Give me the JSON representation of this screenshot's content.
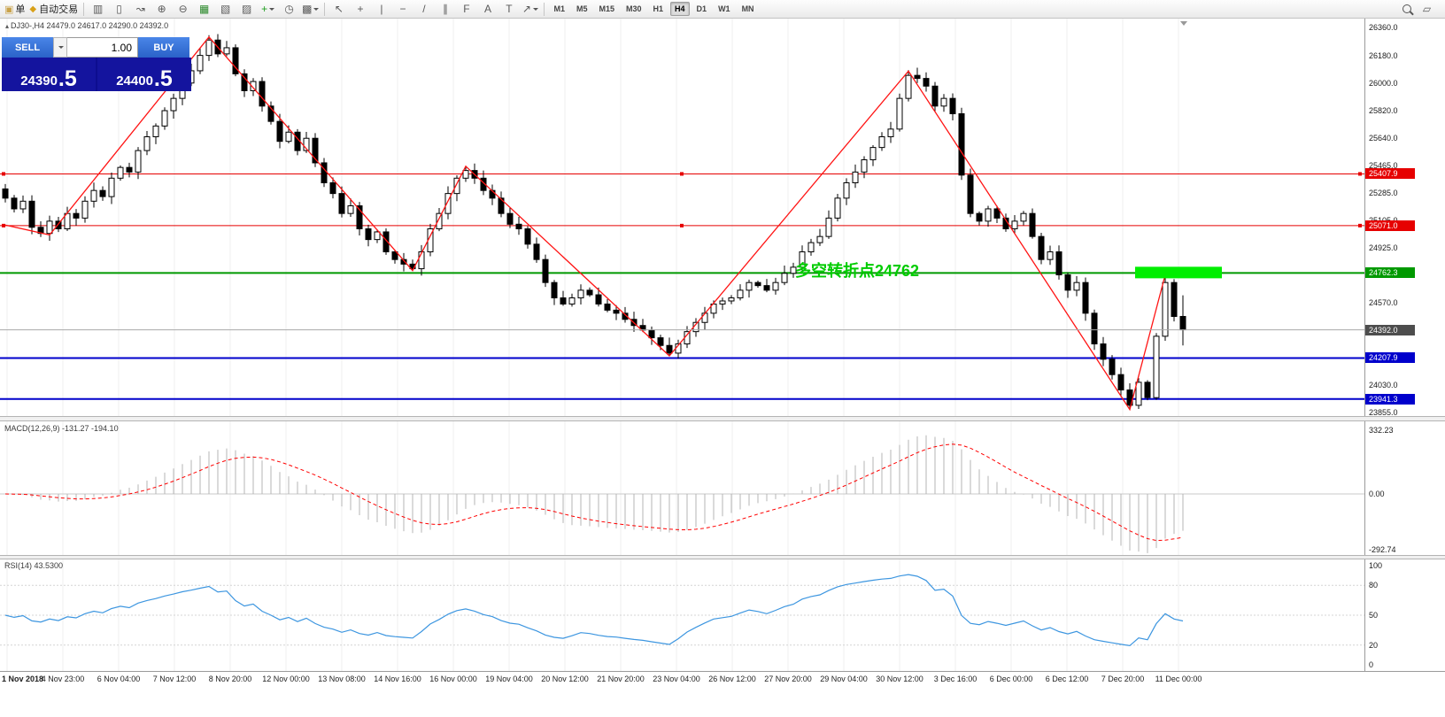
{
  "toolbar": {
    "order_label": "单",
    "order_icon_glyph": "▣",
    "autotrade_label": "自动交易",
    "autotrade_icon_glyph": "◆",
    "icons_left": [
      {
        "name": "bar-chart-icon",
        "glyph": "▥"
      },
      {
        "name": "candlestick-chart-icon",
        "glyph": "▯"
      },
      {
        "name": "line-chart-icon",
        "glyph": "↝"
      },
      {
        "name": "zoom-in-icon",
        "glyph": "⊕"
      },
      {
        "name": "zoom-out-icon",
        "glyph": "⊖"
      },
      {
        "name": "tile-windows-icon",
        "glyph": "▦",
        "color": "#2e8b2e"
      },
      {
        "name": "auto-arrange-icon",
        "glyph": "▧"
      },
      {
        "name": "chart-shift-icon",
        "glyph": "▨"
      },
      {
        "name": "new-chart-icon",
        "glyph": "+",
        "color": "#1f9e1f",
        "caret": true
      },
      {
        "name": "clock-icon",
        "glyph": "◷"
      },
      {
        "name": "grid-icon",
        "glyph": "▩",
        "caret": true
      }
    ],
    "icons_draw": [
      {
        "name": "cursor-icon",
        "glyph": "↖"
      },
      {
        "name": "crosshair-icon",
        "glyph": "+"
      },
      {
        "name": "vertical-line-icon",
        "glyph": "|"
      },
      {
        "name": "horizontal-line-icon",
        "glyph": "−"
      },
      {
        "name": "trendline-icon",
        "glyph": "/"
      },
      {
        "name": "channel-icon",
        "glyph": "∥"
      },
      {
        "name": "fibonacci-icon",
        "glyph": "F"
      },
      {
        "name": "text-icon",
        "glyph": "A"
      },
      {
        "name": "label-icon",
        "glyph": "T"
      },
      {
        "name": "arrows-icon",
        "glyph": "↗",
        "caret": true
      }
    ],
    "timeframes": [
      "M1",
      "M5",
      "M15",
      "M30",
      "H1",
      "H4",
      "D1",
      "W1",
      "MN"
    ],
    "active_timeframe": "H4",
    "icons_right": [
      {
        "name": "search-icon",
        "css": "magnifier"
      },
      {
        "name": "new-window-icon",
        "glyph": "▱"
      }
    ]
  },
  "trade_panel": {
    "sell_label": "SELL",
    "buy_label": "BUY",
    "volume": "1.00",
    "sell_price_main": "24390",
    "sell_price_pip": ".5",
    "buy_price_main": "24400",
    "buy_price_pip": ".5"
  },
  "chart": {
    "title": "DJ30-,H4 24479.0 24617.0 24290.0 24392.0"
  },
  "chart_data": {
    "type": "candlestick",
    "symbol": "DJ30-",
    "period": "H4",
    "last_ohlc": [
      24479.0,
      24617.0,
      24290.0,
      24392.0
    ],
    "open_first": 25310,
    "closes": [
      25250,
      25180,
      25230,
      25060,
      25020,
      25100,
      25050,
      25150,
      25120,
      25230,
      25300,
      25260,
      25380,
      25450,
      25420,
      25560,
      25650,
      25720,
      25820,
      25900,
      26000,
      26080,
      26180,
      26280,
      26190,
      26230,
      26060,
      25950,
      26010,
      25850,
      25750,
      25620,
      25680,
      25560,
      25640,
      25480,
      25350,
      25280,
      25150,
      25200,
      25050,
      24980,
      25030,
      24900,
      24850,
      24820,
      24790,
      24900,
      25050,
      25150,
      25280,
      25380,
      25430,
      25380,
      25300,
      25250,
      25150,
      25080,
      25050,
      24950,
      24850,
      24700,
      24600,
      24560,
      24600,
      24650,
      24620,
      24560,
      24520,
      24500,
      24460,
      24420,
      24390,
      24340,
      24290,
      24240,
      24300,
      24380,
      24440,
      24500,
      24560,
      24580,
      24600,
      24650,
      24700,
      24680,
      24650,
      24700,
      24760,
      24800,
      24900,
      24960,
      25000,
      25120,
      25250,
      25350,
      25420,
      25500,
      25580,
      25650,
      25700,
      25900,
      26050,
      26030,
      25980,
      25850,
      25900,
      25800,
      25400,
      25150,
      25100,
      25180,
      25120,
      25050,
      25100,
      25150,
      25000,
      24850,
      24900,
      24750,
      24650,
      24700,
      24500,
      24300,
      24200,
      24100,
      24000,
      23900,
      24050,
      23950,
      24350,
      24700,
      24479,
      24392
    ],
    "candle_overrides": {
      "23": {
        "high": 26312
      },
      "46": {
        "low": 24778
      },
      "52": {
        "high": 25460
      },
      "75": {
        "low": 24222
      },
      "102": {
        "high": 26085
      },
      "127": {
        "low": 23870
      },
      "131": {
        "high": 24755
      },
      "133": {
        "open": 24479,
        "high": 24617,
        "low": 24290,
        "close": 24392
      }
    },
    "zigzag": [
      [
        0,
        25075
      ],
      [
        5,
        25010
      ],
      [
        23,
        26300
      ],
      [
        46,
        24778
      ],
      [
        52,
        25458
      ],
      [
        75,
        24222
      ],
      [
        102,
        26078
      ],
      [
        127,
        23872
      ],
      [
        131,
        24750
      ]
    ],
    "levels": [
      {
        "price": 25407.9,
        "label": "25407.9",
        "color": "#e60000",
        "markers": true
      },
      {
        "price": 25071.0,
        "label": "25071.0",
        "color": "#e60000",
        "markers": true
      },
      {
        "price": 24762.3,
        "label": "24762.3",
        "color": "#009900",
        "width": 2
      },
      {
        "price": 24207.9,
        "label": "24207.9",
        "color": "#0000cc",
        "width": 2
      },
      {
        "price": 23941.3,
        "label": "23941.3",
        "color": "#0000cc",
        "width": 2
      }
    ],
    "current_price": {
      "price": 24392.0,
      "label": "24392.0",
      "badge_bg": "#4d4d4d"
    },
    "highlight": {
      "from_index": 128,
      "to_index": 137,
      "price": 24762.3,
      "color": "#00ee00"
    },
    "annotation": {
      "text": "多空转折点24762",
      "color": "#00cc00"
    },
    "y_ticks": [
      26360,
      26180,
      26000,
      25820,
      25640,
      25465,
      25285,
      25105,
      24925,
      24745,
      24570,
      24390,
      24210,
      24030,
      23855
    ],
    "macd": {
      "label": "MACD(12,26,9) -131.27 -194.10",
      "axis_labels": [
        {
          "v": 332.23,
          "t": "332.23"
        },
        {
          "v": 0,
          "t": "0.00"
        },
        {
          "v": -292.74,
          "t": "-292.74"
        }
      ]
    },
    "rsi": {
      "label": "RSI(14) 43.5300",
      "axis_labels": [
        100,
        80,
        50,
        20,
        0
      ],
      "grid_levels": [
        80,
        50,
        20
      ]
    },
    "dates": [
      "1 Nov 2018",
      "4 Nov 23:00",
      "6 Nov 04:00",
      "7 Nov 12:00",
      "8 Nov 20:00",
      "12 Nov 00:00",
      "13 Nov 08:00",
      "14 Nov 16:00",
      "16 Nov 00:00",
      "19 Nov 04:00",
      "20 Nov 12:00",
      "21 Nov 20:00",
      "23 Nov 04:00",
      "26 Nov 12:00",
      "27 Nov 20:00",
      "29 Nov 04:00",
      "30 Nov 12:00",
      "3 Dec 16:00",
      "6 Dec 00:00",
      "6 Dec 12:00",
      "7 Dec 20:00",
      "11 Dec 00:00"
    ]
  }
}
